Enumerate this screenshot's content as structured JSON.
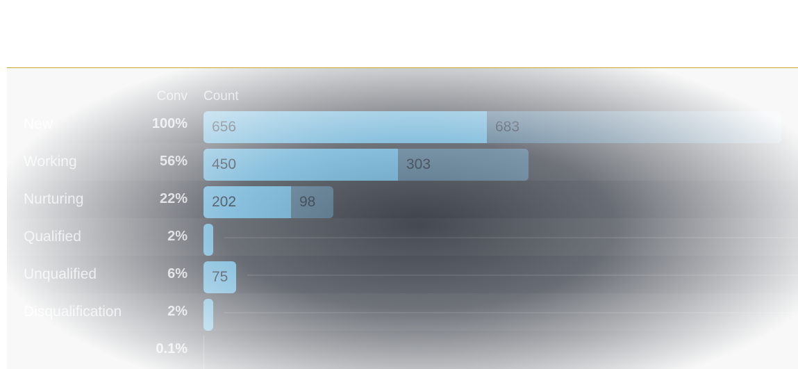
{
  "chart_data": {
    "type": "bar",
    "orientation": "horizontal",
    "stacked": true,
    "column_headers": {
      "conv": "Conv",
      "count": "Count"
    },
    "categories": [
      "New",
      "Working",
      "Nurturing",
      "Qualified",
      "Unqualified",
      "Disqualification",
      ""
    ],
    "conv": [
      "100%",
      "56%",
      "22%",
      "2%",
      "6%",
      "2%",
      "0.1%"
    ],
    "series": [
      {
        "values": [
          656,
          450,
          202,
          8,
          75,
          8,
          0
        ],
        "labels": [
          "656",
          "450",
          "202",
          "",
          "75",
          "",
          ""
        ],
        "color": "#7fd2fb"
      },
      {
        "values": [
          683,
          303,
          98,
          0,
          0,
          0,
          0
        ],
        "labels": [
          "683",
          "303",
          "98",
          "",
          "",
          "",
          ""
        ],
        "color": "#7abee8"
      }
    ],
    "xlim": [
      0,
      1339
    ],
    "grid": false,
    "legend": "none"
  }
}
